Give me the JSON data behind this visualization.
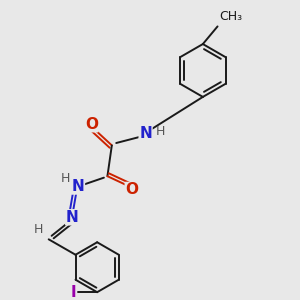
{
  "bg_color": "#e8e8e8",
  "bond_color": "#1a1a1a",
  "N_color": "#2222cc",
  "O_color": "#cc2200",
  "I_color": "#9900aa",
  "H_color": "#555555",
  "figsize": [
    3.0,
    3.0
  ],
  "dpi": 100,
  "xlim": [
    0,
    10
  ],
  "ylim": [
    0,
    10
  ]
}
